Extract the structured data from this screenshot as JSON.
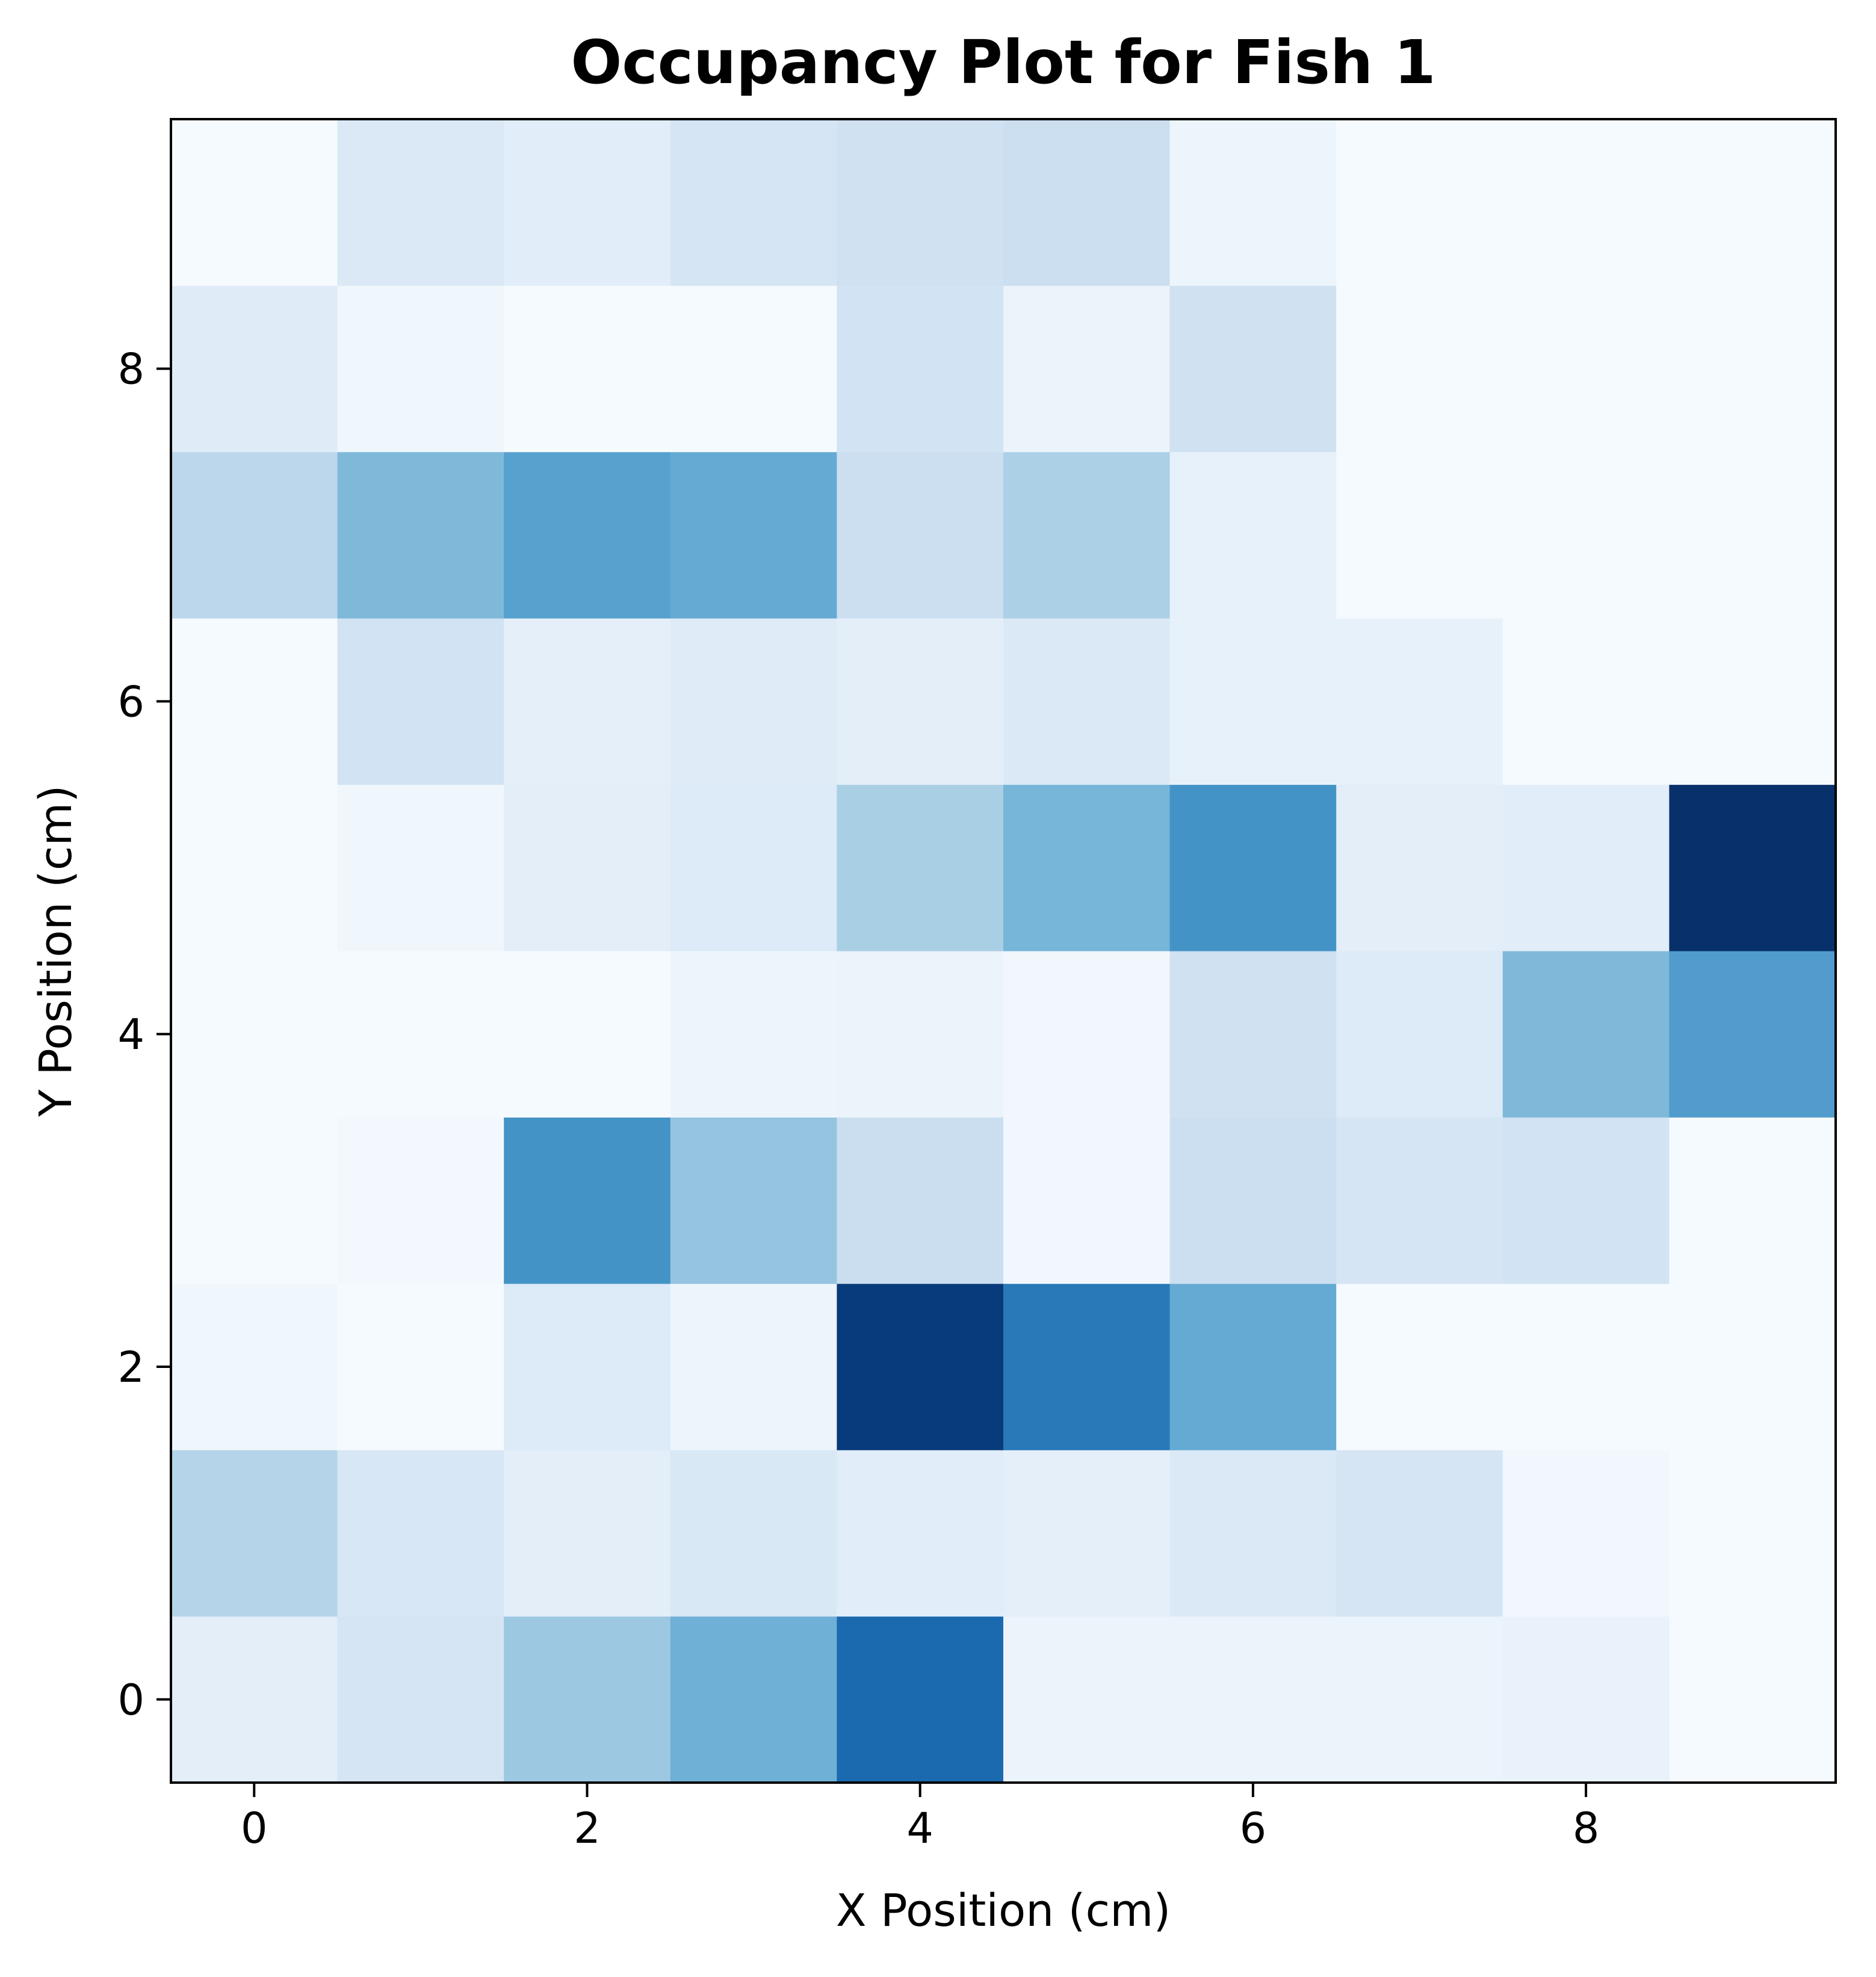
{
  "chart_data": {
    "type": "heatmap",
    "title": "Occupancy Plot for Fish 1",
    "xlabel": "X Position (cm)",
    "ylabel": "Y Position (cm)",
    "x": [
      0,
      1,
      2,
      3,
      4,
      5,
      6,
      7,
      8,
      9
    ],
    "y": [
      0,
      1,
      2,
      3,
      4,
      5,
      6,
      7,
      8,
      9
    ],
    "xlim": [
      -0.5,
      9.5
    ],
    "ylim": [
      -0.5,
      9.5
    ],
    "xticks": [
      "0",
      "2",
      "4",
      "6",
      "8"
    ],
    "yticks": [
      "0",
      "2",
      "4",
      "6",
      "8"
    ],
    "colormap": "Blues",
    "colormap_stops": [
      "#f7fbff",
      "#deebf7",
      "#c6dbef",
      "#9ecae1",
      "#6baed6",
      "#4292c6",
      "#2171b5",
      "#08519c",
      "#08306b"
    ],
    "grid": false,
    "values_normalized": [
      [
        0.1,
        0.17,
        0.38,
        0.49,
        0.78,
        0.06,
        0.06,
        0.06,
        0.07,
        0.01
      ],
      [
        0.3,
        0.16,
        0.1,
        0.15,
        0.11,
        0.09,
        0.14,
        0.17,
        0.03,
        0.01
      ],
      [
        0.04,
        0.01,
        0.13,
        0.05,
        0.96,
        0.72,
        0.52,
        0.01,
        0.01,
        0.01
      ],
      [
        0.01,
        0.02,
        0.62,
        0.4,
        0.23,
        0.03,
        0.22,
        0.17,
        0.19,
        0.01
      ],
      [
        0.01,
        0.01,
        0.01,
        0.05,
        0.06,
        0.03,
        0.2,
        0.13,
        0.45,
        0.58
      ],
      [
        0.01,
        0.04,
        0.1,
        0.13,
        0.34,
        0.47,
        0.62,
        0.1,
        0.11,
        1.0
      ],
      [
        0.01,
        0.19,
        0.09,
        0.12,
        0.1,
        0.14,
        0.08,
        0.08,
        0.01,
        0.01
      ],
      [
        0.28,
        0.45,
        0.56,
        0.52,
        0.22,
        0.33,
        0.08,
        0.01,
        0.01,
        0.01
      ],
      [
        0.12,
        0.04,
        0.01,
        0.01,
        0.19,
        0.06,
        0.2,
        0.01,
        0.01,
        0.01
      ],
      [
        0.01,
        0.14,
        0.11,
        0.17,
        0.2,
        0.22,
        0.05,
        0.01,
        0.01,
        0.01
      ]
    ]
  }
}
